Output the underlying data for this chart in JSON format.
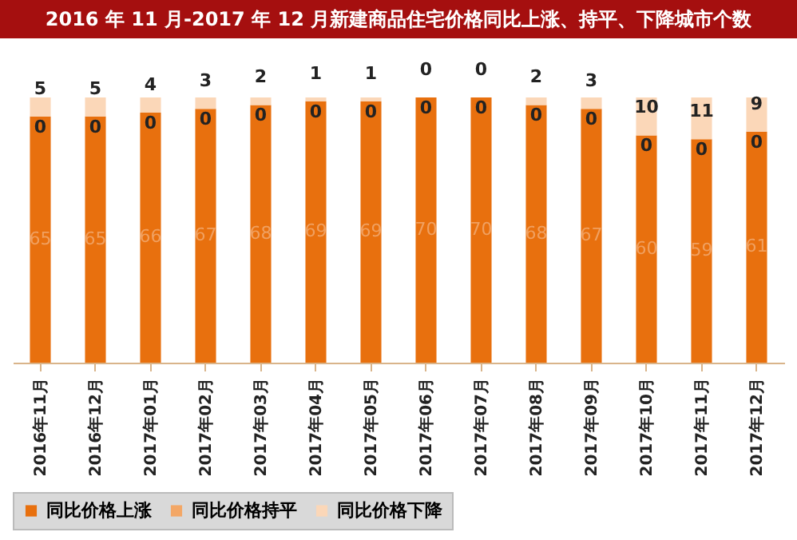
{
  "chart_data": {
    "type": "bar",
    "title": "2016 年 11 月-2017 年 12 月新建商品住宅价格同比上涨、持平、下降城市个数",
    "stacked": true,
    "data_labels": true,
    "legend": "bottom",
    "categories": [
      "2016年11月",
      "2016年12月",
      "2017年01月",
      "2017年02月",
      "2017年03月",
      "2017年04月",
      "2017年05月",
      "2017年06月",
      "2017年07月",
      "2017年08月",
      "2017年09月",
      "2017年10月",
      "2017年11月",
      "2017年12月"
    ],
    "series": [
      {
        "name": "同比价格上涨",
        "color": "#e8700e",
        "values": [
          65,
          65,
          66,
          67,
          68,
          69,
          69,
          70,
          70,
          68,
          67,
          60,
          59,
          61
        ]
      },
      {
        "name": "同比价格持平",
        "color": "#f3a766",
        "values": [
          0,
          0,
          0,
          0,
          0,
          0,
          0,
          0,
          0,
          0,
          0,
          0,
          0,
          0
        ]
      },
      {
        "name": "同比价格下降",
        "color": "#fbd7b8",
        "values": [
          5,
          5,
          4,
          3,
          2,
          1,
          1,
          0,
          0,
          2,
          3,
          10,
          11,
          9
        ]
      }
    ]
  }
}
